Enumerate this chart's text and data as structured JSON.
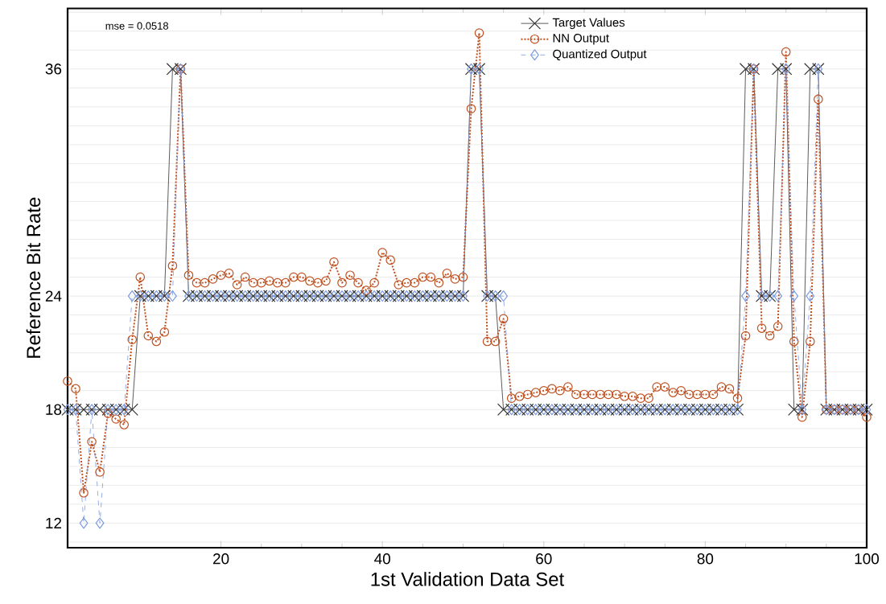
{
  "chart_data": {
    "type": "line",
    "xlabel": "1st Validation Data Set",
    "ylabel": "Reference Bit Rate",
    "annotations": [
      "mse = 0.0518"
    ],
    "x": [
      1,
      2,
      3,
      4,
      5,
      6,
      7,
      8,
      9,
      10,
      11,
      12,
      13,
      14,
      15,
      16,
      17,
      18,
      19,
      20,
      21,
      22,
      23,
      24,
      25,
      26,
      27,
      28,
      29,
      30,
      31,
      32,
      33,
      34,
      35,
      36,
      37,
      38,
      39,
      40,
      41,
      42,
      43,
      44,
      45,
      46,
      47,
      48,
      49,
      50,
      51,
      52,
      53,
      54,
      55,
      56,
      57,
      58,
      59,
      60,
      61,
      62,
      63,
      64,
      65,
      66,
      67,
      68,
      69,
      70,
      71,
      72,
      73,
      74,
      75,
      76,
      77,
      78,
      79,
      80,
      81,
      82,
      83,
      84,
      85,
      86,
      87,
      88,
      89,
      90,
      91,
      92,
      93,
      94,
      95,
      96,
      97,
      98,
      99,
      100
    ],
    "xlim": [
      1,
      100
    ],
    "xticks": [
      20,
      40,
      60,
      80,
      100
    ],
    "ylim": [
      10.7,
      39.2
    ],
    "yticks": [
      12,
      18,
      24,
      36
    ],
    "grid": "y",
    "legend": "top right",
    "series": [
      {
        "name": "Target Values",
        "color": "#333333",
        "marker": "cross",
        "line_style": "solid",
        "values": [
          18,
          18,
          18,
          18,
          18,
          18,
          18,
          18,
          18,
          24,
          24,
          24,
          24,
          36,
          36,
          24,
          24,
          24,
          24,
          24,
          24,
          24,
          24,
          24,
          24,
          24,
          24,
          24,
          24,
          24,
          24,
          24,
          24,
          24,
          24,
          24,
          24,
          24,
          24,
          24,
          24,
          24,
          24,
          24,
          24,
          24,
          24,
          24,
          24,
          24,
          36,
          36,
          24,
          24,
          18,
          18,
          18,
          18,
          18,
          18,
          18,
          18,
          18,
          18,
          18,
          18,
          18,
          18,
          18,
          18,
          18,
          18,
          18,
          18,
          18,
          18,
          18,
          18,
          18,
          18,
          18,
          18,
          18,
          18,
          36,
          36,
          24,
          24,
          36,
          36,
          18,
          18,
          36,
          36,
          18,
          18,
          18,
          18,
          18,
          18
        ]
      },
      {
        "name": "NN Output",
        "color": "#c0501f",
        "marker": "circle",
        "line_style": "dotted",
        "values": [
          19.5,
          19.1,
          13.6,
          16.3,
          14.7,
          17.8,
          17.5,
          17.2,
          21.7,
          25.0,
          21.9,
          21.6,
          22.1,
          25.6,
          36.0,
          25.1,
          24.7,
          24.7,
          24.9,
          25.1,
          25.2,
          24.6,
          25.0,
          24.7,
          24.7,
          24.8,
          24.7,
          24.7,
          25.0,
          25.0,
          24.8,
          24.7,
          24.8,
          25.8,
          24.7,
          25.1,
          24.7,
          24.3,
          24.7,
          26.3,
          25.9,
          24.6,
          24.7,
          24.7,
          25.0,
          25.0,
          24.7,
          25.2,
          24.9,
          25.0,
          33.9,
          37.9,
          21.6,
          21.6,
          22.8,
          18.6,
          18.7,
          18.8,
          18.9,
          19.0,
          19.1,
          19.0,
          19.2,
          18.8,
          18.8,
          18.8,
          18.8,
          18.8,
          18.8,
          18.7,
          18.7,
          18.6,
          18.6,
          19.2,
          19.2,
          18.9,
          19.0,
          18.8,
          18.8,
          18.8,
          18.8,
          19.2,
          19.1,
          18.6,
          21.9,
          36.0,
          22.3,
          21.9,
          22.4,
          36.9,
          21.6,
          17.6,
          21.6,
          34.4,
          18.0,
          18.0,
          18.0,
          18.0,
          18.0,
          17.6
        ]
      },
      {
        "name": "Quantized Output",
        "color": "#7b9be0",
        "marker": "diamond",
        "line_style": "dashed",
        "values": [
          18,
          18,
          12,
          18,
          12,
          18,
          18,
          18,
          24,
          24,
          24,
          24,
          24,
          24,
          36,
          24,
          24,
          24,
          24,
          24,
          24,
          24,
          24,
          24,
          24,
          24,
          24,
          24,
          24,
          24,
          24,
          24,
          24,
          24,
          24,
          24,
          24,
          24,
          24,
          24,
          24,
          24,
          24,
          24,
          24,
          24,
          24,
          24,
          24,
          24,
          36,
          36,
          24,
          24,
          24,
          18,
          18,
          18,
          18,
          18,
          18,
          18,
          18,
          18,
          18,
          18,
          18,
          18,
          18,
          18,
          18,
          18,
          18,
          18,
          18,
          18,
          18,
          18,
          18,
          18,
          18,
          18,
          18,
          18,
          24,
          36,
          24,
          24,
          24,
          36,
          24,
          18,
          24,
          36,
          18,
          18,
          18,
          18,
          18,
          18
        ]
      }
    ]
  }
}
